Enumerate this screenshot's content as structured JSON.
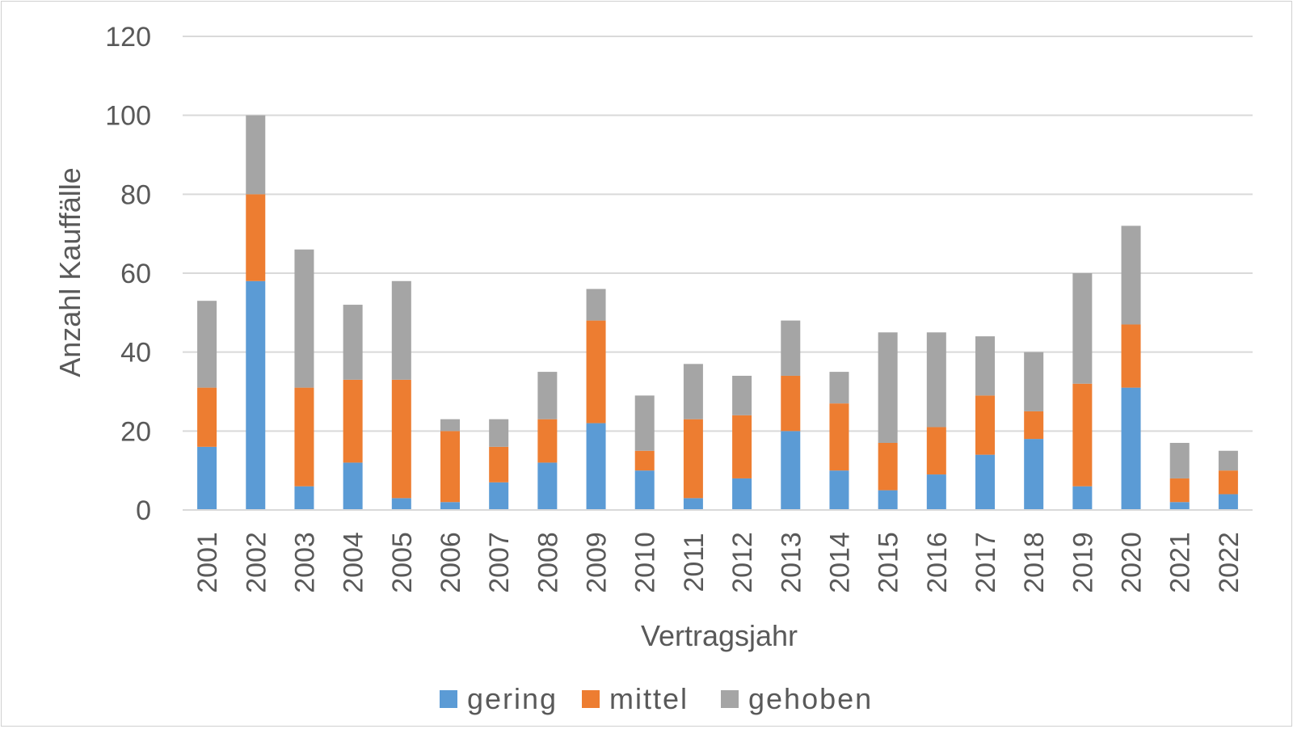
{
  "chart_data": {
    "type": "bar",
    "stacked": true,
    "xlabel": "Vertragsjahr",
    "ylabel": "Anzahl Kauffälle",
    "ylim": [
      0,
      120
    ],
    "yticks": [
      0,
      20,
      40,
      60,
      80,
      100,
      120
    ],
    "grid": true,
    "legend_position": "bottom",
    "categories": [
      "2001",
      "2002",
      "2003",
      "2004",
      "2005",
      "2006",
      "2007",
      "2008",
      "2009",
      "2010",
      "2011",
      "2012",
      "2013",
      "2014",
      "2015",
      "2016",
      "2017",
      "2018",
      "2019",
      "2020",
      "2021",
      "2022"
    ],
    "series": [
      {
        "name": "gering",
        "color": "#5b9bd5",
        "values": [
          16,
          58,
          6,
          12,
          3,
          2,
          7,
          12,
          22,
          10,
          3,
          8,
          20,
          10,
          5,
          9,
          14,
          18,
          6,
          31,
          2,
          4
        ]
      },
      {
        "name": "mittel",
        "color": "#ed7d31",
        "values": [
          15,
          22,
          25,
          21,
          30,
          18,
          9,
          11,
          26,
          5,
          20,
          16,
          14,
          17,
          12,
          12,
          15,
          7,
          26,
          16,
          6,
          6
        ]
      },
      {
        "name": "gehoben",
        "color": "#a5a5a5",
        "values": [
          22,
          20,
          35,
          19,
          25,
          3,
          7,
          12,
          8,
          14,
          14,
          10,
          14,
          8,
          28,
          24,
          15,
          15,
          28,
          25,
          9,
          5
        ]
      }
    ]
  }
}
